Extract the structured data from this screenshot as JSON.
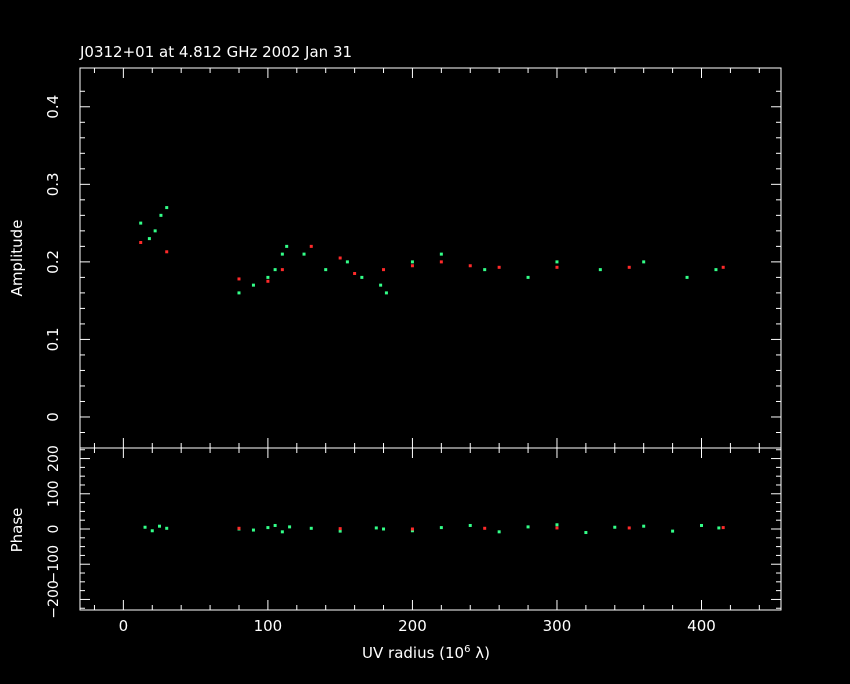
{
  "title": "J0312+01 at 4.812 GHz 2002 Jan 31",
  "colors": {
    "background": "#000000",
    "axes": "#ffffff",
    "data": "#33ff88",
    "model": "#ff2a2a"
  },
  "chart_data": [
    {
      "type": "scatter",
      "panel": "amplitude",
      "title": "J0312+01 at 4.812 GHz 2002 Jan 31",
      "ylabel": "Amplitude",
      "xlim": [
        -30,
        455
      ],
      "ylim": [
        -0.04,
        0.45
      ],
      "xticks": [
        0,
        100,
        200,
        300,
        400
      ],
      "yticks": [
        0,
        0.1,
        0.2,
        0.3,
        0.4
      ],
      "ytick_labels": [
        "0",
        "0.1",
        "0.2",
        "0.3",
        "0.4"
      ],
      "series": [
        {
          "x": [
            12,
            18,
            22,
            26,
            30,
            80,
            90,
            100,
            105,
            110,
            113,
            125,
            140,
            155,
            165,
            178,
            182,
            200,
            220,
            250,
            280,
            300,
            330,
            360,
            390,
            410
          ],
          "values": [
            0.25,
            0.23,
            0.24,
            0.26,
            0.27,
            0.16,
            0.17,
            0.18,
            0.19,
            0.21,
            0.22,
            0.21,
            0.19,
            0.2,
            0.18,
            0.17,
            0.16,
            0.2,
            0.21,
            0.19,
            0.18,
            0.2,
            0.19,
            0.2,
            0.18,
            0.19
          ]
        },
        {
          "x": [
            12,
            30,
            80,
            100,
            110,
            130,
            150,
            160,
            180,
            200,
            220,
            240,
            260,
            300,
            350,
            415
          ],
          "values": [
            0.225,
            0.213,
            0.178,
            0.175,
            0.19,
            0.22,
            0.205,
            0.185,
            0.19,
            0.195,
            0.2,
            0.195,
            0.193,
            0.193,
            0.193,
            0.193
          ]
        }
      ]
    },
    {
      "type": "scatter",
      "panel": "phase",
      "xlabel": "UV radius  (10",
      "xlabel_exp": "6",
      "xlabel_unit": " λ)",
      "ylabel": "Phase",
      "xlim": [
        -30,
        455
      ],
      "ylim": [
        -230,
        230
      ],
      "xticks": [
        0,
        100,
        200,
        300,
        400
      ],
      "xtick_labels": [
        "0",
        "100",
        "200",
        "300",
        "400"
      ],
      "yticks": [
        -200,
        -100,
        0,
        100,
        200
      ],
      "ytick_labels": [
        "−200",
        "−100",
        "0",
        "100",
        "200"
      ],
      "series": [
        {
          "x": [
            15,
            20,
            25,
            30,
            80,
            90,
            100,
            105,
            110,
            115,
            130,
            150,
            175,
            180,
            200,
            220,
            240,
            260,
            280,
            300,
            320,
            340,
            360,
            380,
            400,
            412
          ],
          "values": [
            5,
            -5,
            8,
            2,
            0,
            -3,
            4,
            10,
            -8,
            6,
            2,
            -6,
            3,
            0,
            -5,
            4,
            10,
            -8,
            6,
            12,
            -10,
            5,
            8,
            -6,
            10,
            3
          ]
        },
        {
          "x": [
            80,
            150,
            200,
            250,
            300,
            350,
            415
          ],
          "values": [
            2,
            1,
            0,
            2,
            3,
            3,
            4
          ]
        }
      ]
    }
  ]
}
